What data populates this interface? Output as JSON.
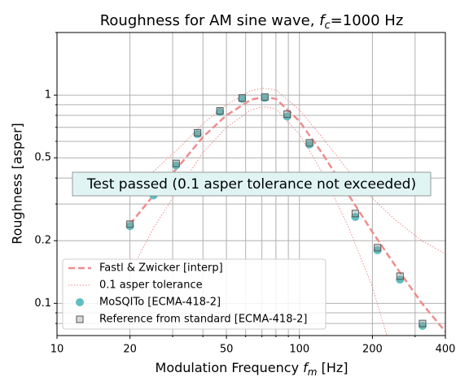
{
  "chart_data": {
    "type": "line",
    "title": [
      "Roughness for AM sine wave, ",
      "f",
      "c",
      "=1000 Hz"
    ],
    "xlabel": [
      "Modulation Frequency ",
      "f",
      "m",
      " [Hz]"
    ],
    "ylabel": "Roughness [asper]",
    "annotation": "Test passed (0.1 asper tolerance not exceeded)",
    "xscale": "log",
    "yscale": "log",
    "grid": true,
    "legend": "lower left",
    "xlim": [
      10,
      400
    ],
    "ylim": [
      0.07,
      2
    ],
    "xticks": [
      10,
      20,
      50,
      100,
      200,
      400
    ],
    "xminor": [
      30,
      40,
      60,
      70,
      80,
      90,
      300
    ],
    "yticks": [
      0.1,
      0.2,
      0.5,
      1
    ],
    "yminor": [
      0.08,
      0.09,
      0.3,
      0.4,
      0.6,
      0.7,
      0.8,
      0.9,
      2
    ],
    "series": [
      {
        "name": "Fastl & Zwicker [interp]",
        "kind": "dashed",
        "color": "#f08c8c",
        "x": [
          20,
          25,
          32,
          40,
          50,
          63,
          71,
          80,
          100,
          125,
          160,
          200,
          250,
          320,
          400
        ],
        "values": [
          0.24,
          0.33,
          0.46,
          0.63,
          0.8,
          0.95,
          0.98,
          0.96,
          0.75,
          0.52,
          0.33,
          0.22,
          0.15,
          0.1,
          0.073
        ]
      },
      {
        "name": "0.1 asper tolerance",
        "kind": "band",
        "color": "#f08c8c",
        "x": [
          20,
          25,
          32,
          40,
          50,
          63,
          71,
          80,
          100,
          125,
          160,
          200,
          250,
          320,
          400
        ],
        "upper": [
          0.34,
          0.43,
          0.56,
          0.73,
          0.9,
          1.05,
          1.08,
          1.06,
          0.85,
          0.62,
          0.43,
          0.32,
          0.25,
          0.2,
          0.173
        ],
        "lower": [
          0.14,
          0.23,
          0.36,
          0.53,
          0.7,
          0.85,
          0.88,
          0.86,
          0.65,
          0.42,
          0.23,
          0.12,
          0.05,
          null,
          null
        ]
      },
      {
        "name": "MoSQITo [ECMA-418-2]",
        "kind": "circle",
        "color": "#5fbfbf",
        "x": [
          20,
          25,
          31,
          38,
          47,
          58,
          72,
          89,
          110,
          137,
          170,
          210,
          260,
          322
        ],
        "values": [
          0.235,
          0.33,
          0.46,
          0.65,
          0.83,
          0.96,
          0.97,
          0.79,
          0.58,
          0.39,
          0.26,
          0.18,
          0.13,
          0.078
        ]
      },
      {
        "name": "Reference from standard [ECMA-418-2]",
        "kind": "square",
        "color": "#555555",
        "x": [
          20,
          25,
          31,
          38,
          47,
          58,
          72,
          89,
          110,
          137,
          170,
          210,
          260,
          322
        ],
        "values": [
          0.24,
          0.34,
          0.47,
          0.66,
          0.84,
          0.97,
          0.98,
          0.81,
          0.59,
          0.39,
          0.27,
          0.185,
          0.135,
          0.08
        ]
      }
    ]
  }
}
